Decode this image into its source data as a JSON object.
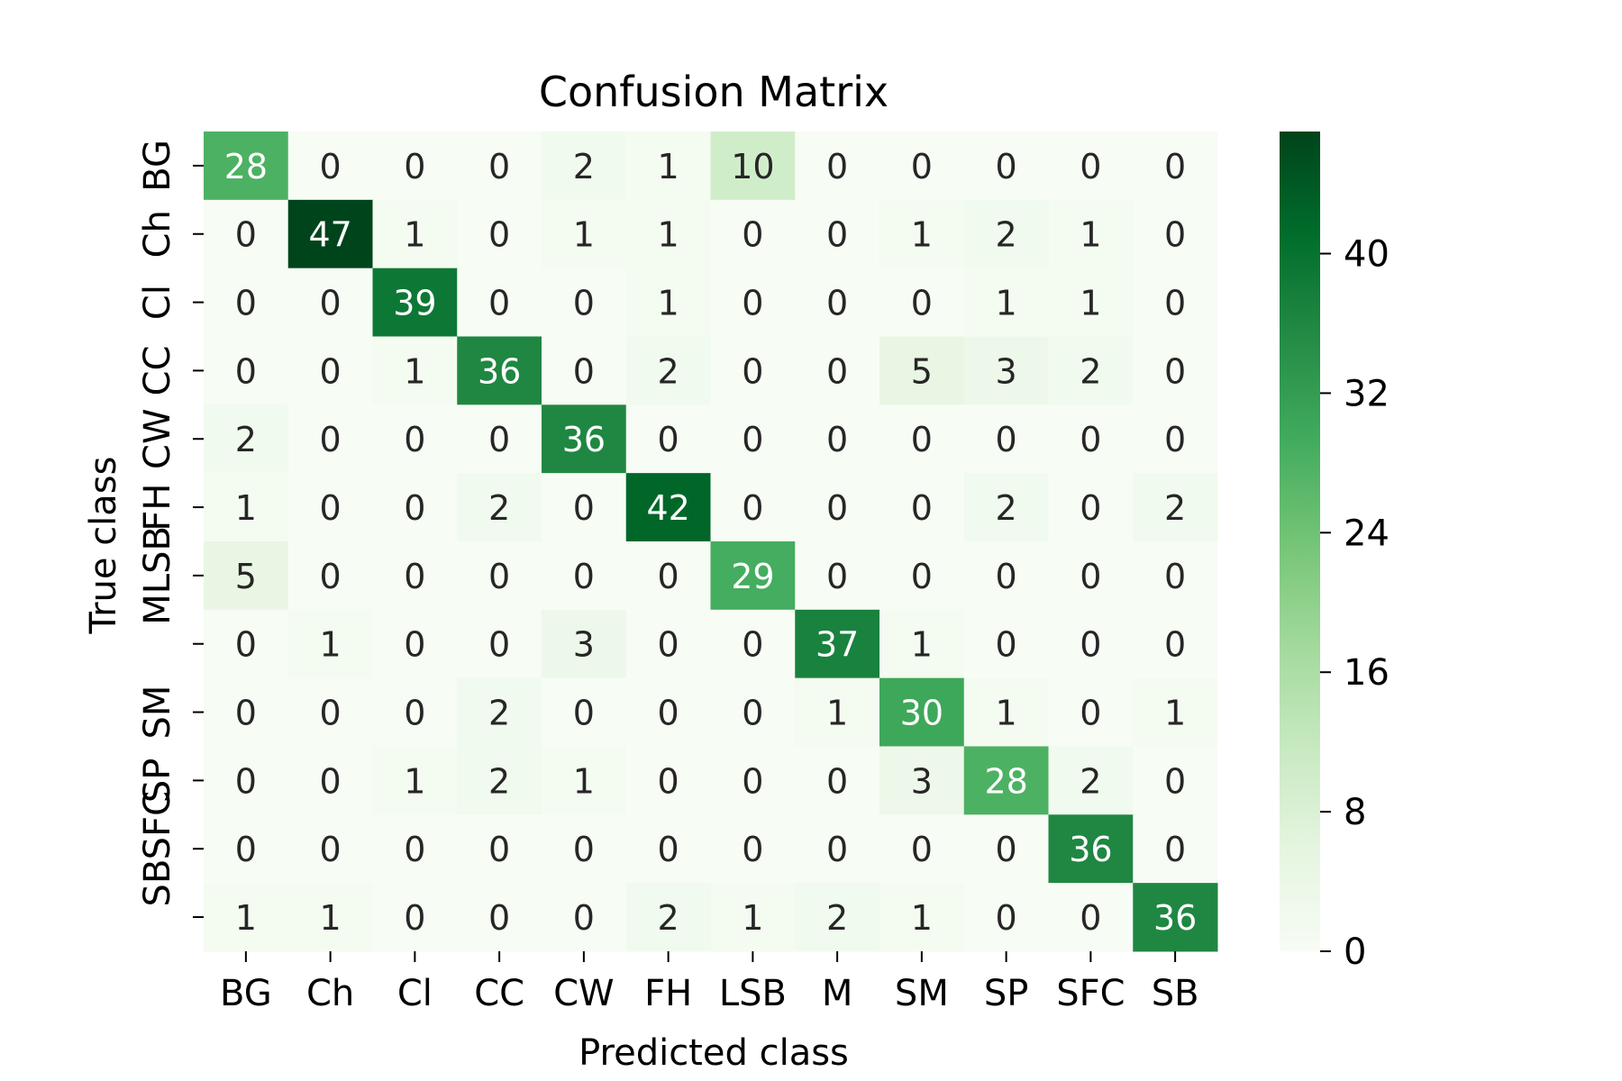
{
  "chart_data": {
    "type": "heatmap",
    "title": "Confusion Matrix",
    "xlabel": "Predicted class",
    "ylabel": "True class",
    "x_categories": [
      "BG",
      "Ch",
      "Cl",
      "CC",
      "CW",
      "FH",
      "LSB",
      "M",
      "SM",
      "SP",
      "SFC",
      "SB"
    ],
    "y_categories": [
      "BG",
      "Ch",
      "Cl",
      "CC",
      "CW",
      "FH",
      "MLSB",
      "",
      "SM",
      "SP",
      "SBSFC",
      ""
    ],
    "values": [
      [
        28,
        0,
        0,
        0,
        2,
        1,
        10,
        0,
        0,
        0,
        0,
        0
      ],
      [
        0,
        47,
        1,
        0,
        1,
        1,
        0,
        0,
        1,
        2,
        1,
        0
      ],
      [
        0,
        0,
        39,
        0,
        0,
        1,
        0,
        0,
        0,
        1,
        1,
        0
      ],
      [
        0,
        0,
        1,
        36,
        0,
        2,
        0,
        0,
        5,
        3,
        2,
        0
      ],
      [
        2,
        0,
        0,
        0,
        36,
        0,
        0,
        0,
        0,
        0,
        0,
        0
      ],
      [
        1,
        0,
        0,
        2,
        0,
        42,
        0,
        0,
        0,
        2,
        0,
        2
      ],
      [
        5,
        0,
        0,
        0,
        0,
        0,
        29,
        0,
        0,
        0,
        0,
        0
      ],
      [
        0,
        1,
        0,
        0,
        3,
        0,
        0,
        37,
        1,
        0,
        0,
        0
      ],
      [
        0,
        0,
        0,
        2,
        0,
        0,
        0,
        1,
        30,
        1,
        0,
        1
      ],
      [
        0,
        0,
        1,
        2,
        1,
        0,
        0,
        0,
        3,
        28,
        2,
        0
      ],
      [
        0,
        0,
        0,
        0,
        0,
        0,
        0,
        0,
        0,
        0,
        36,
        0
      ],
      [
        1,
        1,
        0,
        0,
        0,
        2,
        1,
        2,
        1,
        0,
        0,
        36
      ]
    ],
    "colorbar": {
      "min": 0,
      "max": 47,
      "ticks": [
        0,
        8,
        16,
        24,
        32,
        40
      ]
    },
    "colormap": "Greens",
    "colors": {
      "low": "#f7fcf5",
      "high": "#00441b"
    }
  }
}
